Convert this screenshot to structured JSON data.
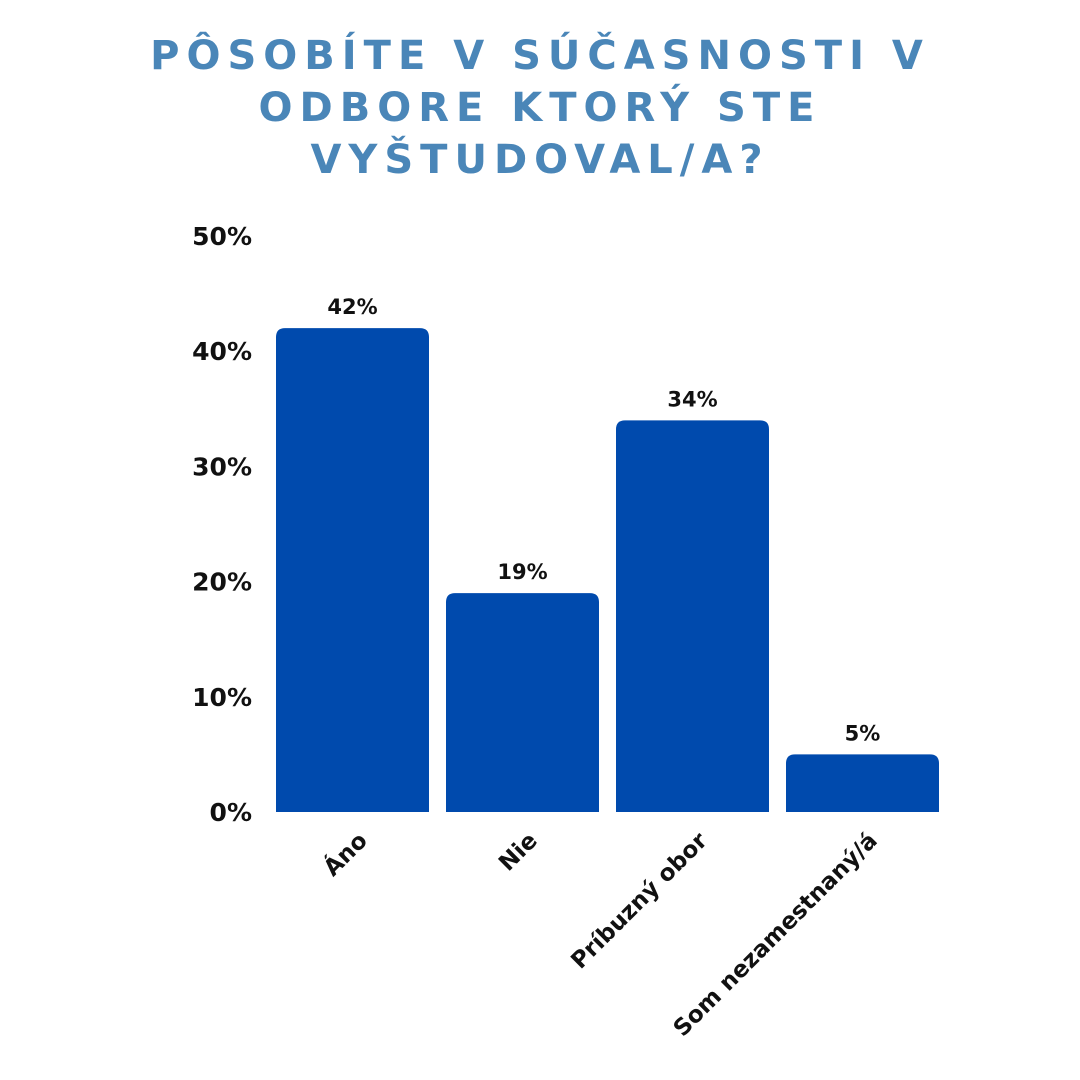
{
  "chart_data": {
    "type": "bar",
    "title": "PÔSOBÍTE V SÚČASNOSTI V ODBORE KTORÝ STE VYŠTUDOVAL/A?",
    "categories": [
      "Áno",
      "Nie",
      "Príbuzný obor",
      "Som nezamestnaný/á"
    ],
    "values": [
      42,
      19,
      34,
      5
    ],
    "value_labels": [
      "42%",
      "19%",
      "34%",
      "5%"
    ],
    "ylim": [
      0,
      50
    ],
    "yticks": [
      0,
      10,
      20,
      30,
      40,
      50
    ],
    "ytick_labels": [
      "0%",
      "10%",
      "20%",
      "30%",
      "40%",
      "50%"
    ],
    "grid": false,
    "legend": "none",
    "bar_color": "#004aad",
    "title_color": "#4a86b8"
  }
}
